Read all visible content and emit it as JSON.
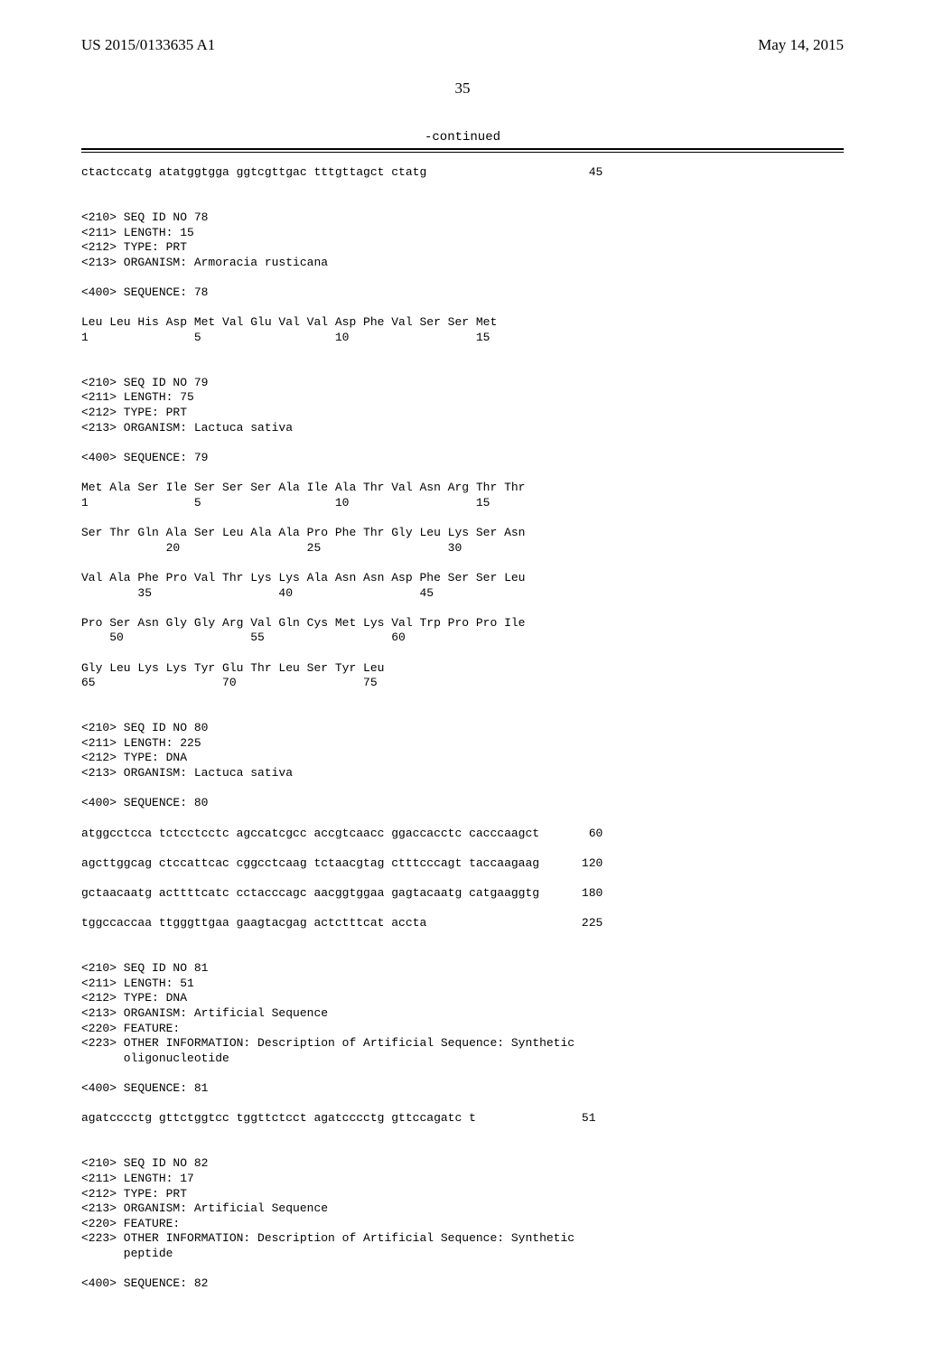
{
  "header": {
    "pubnum": "US 2015/0133635 A1",
    "pubdate": "May 14, 2015"
  },
  "pagenum": "35",
  "continued": "-continued",
  "seq_lines": [
    "ctactccatg atatggtgga ggtcgttgac tttgttagct ctatg                       45",
    "",
    "",
    "<210> SEQ ID NO 78",
    "<211> LENGTH: 15",
    "<212> TYPE: PRT",
    "<213> ORGANISM: Armoracia rusticana",
    "",
    "<400> SEQUENCE: 78",
    "",
    "Leu Leu His Asp Met Val Glu Val Val Asp Phe Val Ser Ser Met",
    "1               5                   10                  15",
    "",
    "",
    "<210> SEQ ID NO 79",
    "<211> LENGTH: 75",
    "<212> TYPE: PRT",
    "<213> ORGANISM: Lactuca sativa",
    "",
    "<400> SEQUENCE: 79",
    "",
    "Met Ala Ser Ile Ser Ser Ser Ala Ile Ala Thr Val Asn Arg Thr Thr",
    "1               5                   10                  15",
    "",
    "Ser Thr Gln Ala Ser Leu Ala Ala Pro Phe Thr Gly Leu Lys Ser Asn",
    "            20                  25                  30",
    "",
    "Val Ala Phe Pro Val Thr Lys Lys Ala Asn Asn Asp Phe Ser Ser Leu",
    "        35                  40                  45",
    "",
    "Pro Ser Asn Gly Gly Arg Val Gln Cys Met Lys Val Trp Pro Pro Ile",
    "    50                  55                  60",
    "",
    "Gly Leu Lys Lys Tyr Glu Thr Leu Ser Tyr Leu",
    "65                  70                  75",
    "",
    "",
    "<210> SEQ ID NO 80",
    "<211> LENGTH: 225",
    "<212> TYPE: DNA",
    "<213> ORGANISM: Lactuca sativa",
    "",
    "<400> SEQUENCE: 80",
    "",
    "atggcctcca tctcctcctc agccatcgcc accgtcaacc ggaccacctc cacccaagct       60",
    "",
    "agcttggcag ctccattcac cggcctcaag tctaacgtag ctttcccagt taccaagaag      120",
    "",
    "gctaacaatg acttttcatc cctacccagc aacggtggaa gagtacaatg catgaaggtg      180",
    "",
    "tggccaccaa ttgggttgaa gaagtacgag actctttcat accta                      225",
    "",
    "",
    "<210> SEQ ID NO 81",
    "<211> LENGTH: 51",
    "<212> TYPE: DNA",
    "<213> ORGANISM: Artificial Sequence",
    "<220> FEATURE:",
    "<223> OTHER INFORMATION: Description of Artificial Sequence: Synthetic",
    "      oligonucleotide",
    "",
    "<400> SEQUENCE: 81",
    "",
    "agatcccctg gttctggtcc tggttctcct agatcccctg gttccagatc t               51",
    "",
    "",
    "<210> SEQ ID NO 82",
    "<211> LENGTH: 17",
    "<212> TYPE: PRT",
    "<213> ORGANISM: Artificial Sequence",
    "<220> FEATURE:",
    "<223> OTHER INFORMATION: Description of Artificial Sequence: Synthetic",
    "      peptide",
    "",
    "<400> SEQUENCE: 82"
  ]
}
